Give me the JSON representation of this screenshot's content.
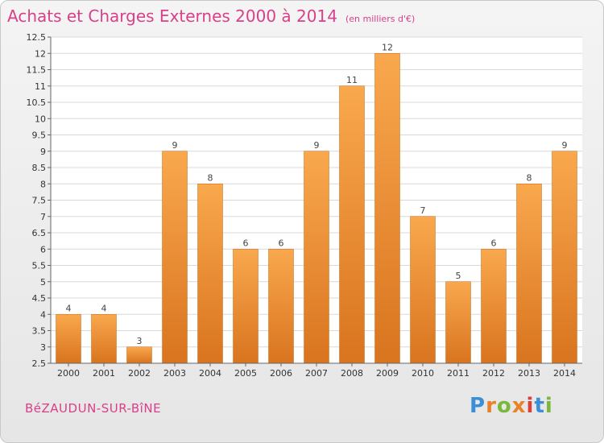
{
  "title": "Achats et Charges Externes 2000 à 2014",
  "subtitle": "(en milliers d'€)",
  "footer": {
    "commune": "BéZAUDUN-SUR-BîNE",
    "logo_text": "Proxiti"
  },
  "colors": {
    "accent": "#d8408a",
    "bar_top": "#f9a84d",
    "bar_bottom": "#d9741f",
    "grid": "#d8d8d8"
  },
  "chart_data": {
    "type": "bar",
    "title": "Achats et Charges Externes 2000 à 2014",
    "subtitle": "(en milliers d'€)",
    "categories": [
      "2000",
      "2001",
      "2002",
      "2003",
      "2004",
      "2005",
      "2006",
      "2007",
      "2008",
      "2009",
      "2010",
      "2011",
      "2012",
      "2013",
      "2014"
    ],
    "values": [
      4,
      4,
      3,
      9,
      8,
      6,
      6,
      9,
      11,
      12,
      7,
      5,
      6,
      8,
      9
    ],
    "ylim": [
      2.5,
      12.5
    ],
    "yticks": [
      "2.5",
      "3",
      "3.5",
      "4",
      "4.5",
      "5",
      "5.5",
      "6",
      "6.5",
      "7",
      "7.5",
      "8",
      "8.5",
      "9",
      "9.5",
      "10",
      "10.5",
      "11",
      "11.5",
      "12",
      "12.5"
    ],
    "grid": true,
    "xlabel": "",
    "ylabel": ""
  }
}
